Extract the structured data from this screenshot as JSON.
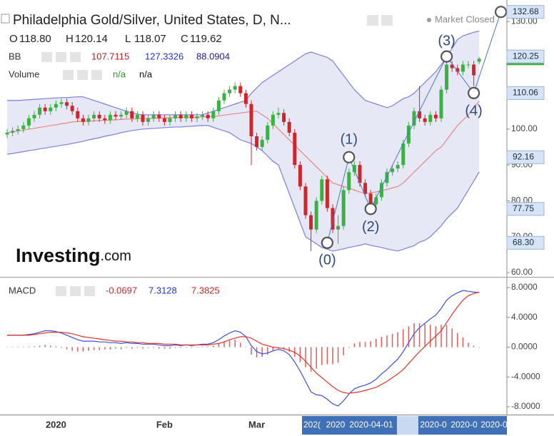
{
  "chart_data": [
    {
      "type": "candlestick",
      "title": "Philadelphia Gold/Silver, United States, D, N...",
      "status": "Market Closed",
      "ohlc_legend": {
        "labels": [
          "O",
          "H",
          "L",
          "C"
        ],
        "values": [
          "118.80",
          "120.14",
          "118.07",
          "119.62"
        ]
      },
      "indicators": [
        {
          "name": "BB",
          "values": [
            "107.7115",
            "127.3326",
            "88.0904"
          ]
        },
        {
          "name": "Volume",
          "values": [
            "n/a",
            "n/a"
          ]
        }
      ],
      "logo": [
        "Investing",
        ".com"
      ],
      "categories": [
        null,
        null,
        null,
        null,
        null,
        null,
        null,
        null,
        null,
        "2020",
        null,
        null,
        null,
        null,
        null,
        null,
        null,
        null,
        null,
        null,
        null,
        null,
        null,
        null,
        null,
        null,
        null,
        null,
        null,
        "Feb",
        null,
        null,
        null,
        null,
        null,
        null,
        null,
        null,
        null,
        null,
        null,
        null,
        null,
        null,
        null,
        null,
        "Mar",
        null,
        null,
        null,
        null,
        null,
        null,
        null,
        null,
        null,
        null,
        null,
        null,
        null,
        null,
        null,
        null,
        null,
        null,
        null,
        null,
        null,
        null,
        null,
        null,
        null,
        null,
        null,
        null,
        null,
        null,
        null,
        null,
        null,
        null,
        null,
        null,
        null,
        null,
        null,
        null,
        null
      ],
      "x_highlight_labels": [
        "202(",
        "2020",
        "2020-04-01",
        "2020-0",
        "2020-0",
        "2020-0"
      ],
      "open": [
        98.5,
        99,
        99.5,
        100,
        101,
        103,
        104,
        106,
        105,
        106,
        107,
        107.5,
        106.5,
        105,
        103,
        102,
        103,
        104,
        103,
        102.5,
        104,
        103.5,
        104,
        105,
        103,
        104,
        102,
        103,
        104,
        103,
        102,
        103,
        104,
        103,
        104,
        103,
        103.5,
        104,
        103,
        105,
        108,
        110,
        111,
        112,
        110,
        107,
        98,
        95,
        97,
        101,
        104,
        104.5,
        102,
        99,
        90,
        84,
        76,
        72,
        80,
        86,
        78,
        72,
        73,
        83,
        88,
        90,
        85,
        82,
        79,
        81,
        85,
        88,
        89,
        90,
        96,
        101,
        105,
        103,
        102,
        104,
        103,
        111,
        118,
        117,
        116,
        118,
        118,
        118.8
      ],
      "high": [
        100,
        100.5,
        101,
        102,
        104,
        105,
        107,
        107,
        107,
        108,
        108.5,
        108.5,
        107.5,
        106,
        104,
        104,
        105,
        105,
        104,
        105,
        105,
        105,
        106,
        106,
        105,
        105,
        104,
        105,
        105,
        104,
        104,
        105,
        105,
        105,
        105,
        104.5,
        105,
        105,
        106,
        109,
        111,
        112,
        113,
        113,
        111,
        108,
        99,
        98,
        102,
        105,
        106,
        105.5,
        103,
        100,
        91,
        85,
        77,
        81,
        87,
        87,
        79,
        76,
        84,
        89,
        91,
        91,
        86,
        83,
        82,
        86,
        89,
        90,
        91,
        97,
        102,
        106,
        112,
        104,
        105,
        105,
        112,
        119,
        119,
        118,
        119,
        119,
        119,
        120.14
      ],
      "low": [
        97.5,
        98,
        98.5,
        99,
        100,
        102,
        103,
        104,
        104,
        105,
        106,
        105.5,
        104,
        102,
        101,
        101,
        102,
        102,
        101.5,
        101.5,
        102.5,
        102.5,
        103,
        102,
        102,
        101,
        101,
        102,
        102,
        101,
        101,
        102,
        102,
        102,
        102,
        102,
        102.5,
        102,
        102,
        104,
        107,
        109,
        110,
        109,
        106,
        90,
        94,
        94,
        96,
        100,
        103,
        101,
        98,
        89,
        83,
        75,
        66,
        71,
        79,
        77,
        71,
        68,
        72,
        82,
        87,
        84,
        81,
        78,
        78,
        80,
        84,
        87,
        88,
        89,
        95,
        100,
        102,
        101,
        101,
        102,
        102,
        110,
        116,
        115,
        115,
        117,
        112,
        118.07
      ],
      "close": [
        99,
        99.5,
        100,
        101,
        103,
        104,
        106,
        105,
        106,
        107,
        107.5,
        106.5,
        105,
        103,
        102,
        103,
        104,
        103,
        102.5,
        104,
        103.5,
        104,
        105,
        103,
        104,
        102,
        103,
        104,
        103,
        102,
        103,
        104,
        103,
        104,
        103,
        103.5,
        104,
        103,
        105,
        108,
        110,
        111,
        112,
        110,
        107,
        98,
        95,
        97,
        101,
        104,
        104.5,
        102,
        99,
        90,
        84,
        76,
        72,
        80,
        86,
        78,
        72,
        73,
        83,
        88,
        90,
        85,
        82,
        79,
        81,
        85,
        88,
        89,
        90,
        96,
        101,
        105,
        103,
        102,
        104,
        103,
        111,
        118,
        117,
        116,
        118,
        118,
        115,
        119.62
      ],
      "up_color": "#3cb043",
      "down_color": "#d0262b",
      "bands": {
        "upper": [
          108,
          108,
          108,
          108.1,
          108.2,
          108.3,
          108.4,
          108.5,
          108.6,
          108.7,
          108.8,
          108.8,
          108.9,
          109,
          109,
          108.5,
          108,
          107.5,
          107,
          106.5,
          106,
          105.5,
          105,
          104.5,
          104.2,
          104,
          104,
          104,
          104,
          104,
          104,
          104,
          104,
          104,
          104,
          104,
          104,
          104.5,
          105,
          105.5,
          106,
          106.5,
          107,
          107.5,
          108,
          110,
          111.5,
          113,
          114,
          115,
          116,
          117,
          118,
          119,
          120,
          121,
          121.5,
          121,
          120.5,
          120,
          119,
          117,
          115,
          113,
          111,
          109.5,
          108,
          107.5,
          107,
          106.5,
          106,
          106.5,
          107.5,
          108.5,
          109,
          110,
          111.5,
          113,
          114.5,
          116,
          118,
          120,
          122.5,
          125,
          126,
          126.5,
          127,
          127.3326
        ],
        "middle": [
          99,
          99.2,
          99.5,
          99.7,
          100,
          100.2,
          100.5,
          100.7,
          101,
          101.2,
          101.5,
          101.7,
          102,
          102.1,
          102.2,
          102.2,
          102.3,
          102.4,
          102.5,
          102.5,
          102.6,
          102.7,
          102.8,
          102.8,
          102.9,
          103,
          103,
          103,
          103.1,
          103.1,
          103.2,
          103.2,
          103.3,
          103.3,
          103.3,
          103.4,
          103.4,
          103.5,
          103.5,
          103.7,
          103.9,
          104.1,
          104.3,
          104.5,
          104.7,
          104.9,
          105,
          104,
          103,
          101.5,
          100,
          98.5,
          97,
          95.5,
          94,
          92.5,
          91,
          89.5,
          88,
          86.5,
          85,
          84.5,
          84,
          83.5,
          83,
          82.5,
          82,
          82.2,
          82.5,
          82.8,
          83.2,
          83.6,
          84,
          85,
          86.5,
          88,
          89.5,
          91,
          92.5,
          94,
          95,
          97,
          99,
          101,
          102.5,
          104,
          106,
          107.7115
        ],
        "lower": [
          93,
          93.2,
          93.5,
          93.7,
          94,
          94.2,
          94.5,
          94.7,
          95,
          95.2,
          95.5,
          95.7,
          96,
          96.3,
          96.6,
          97,
          97.3,
          97.6,
          98,
          98.3,
          98.6,
          99,
          99.3,
          99.6,
          99.8,
          100,
          100.1,
          100.2,
          100.3,
          100.4,
          100.5,
          100.6,
          100.6,
          100.7,
          100.8,
          100.9,
          101,
          101,
          100.5,
          100,
          99.5,
          99,
          98,
          97,
          96.5,
          96,
          95,
          94,
          92.5,
          91,
          90,
          86,
          82,
          78,
          74,
          70,
          69,
          68,
          67,
          66.5,
          66,
          66.3,
          66.6,
          67,
          67.3,
          67.6,
          68,
          67.6,
          67.3,
          67,
          66.6,
          66.3,
          66,
          66.5,
          67,
          67.5,
          68.5,
          69,
          70,
          71.5,
          73,
          75,
          76.5,
          78,
          80.5,
          83,
          85.5,
          88.0904
        ],
        "line_color": "#7b7fe0",
        "middle_color": "#e88585",
        "fill_color": "#e3e4f4"
      },
      "waves": {
        "labels": [
          "(0)",
          "(1)",
          "(2)",
          "(3)",
          "(4)"
        ],
        "x": [
          59,
          63,
          67,
          81,
          86,
          91
        ],
        "values": [
          68.3,
          92.16,
          77.75,
          120.25,
          110.06,
          132.68
        ],
        "value_labels": [
          "68.30",
          "92.16",
          "77.75",
          "120.25",
          "110.06",
          "132.68"
        ],
        "color": "#4a77d0"
      },
      "ylim": [
        58.8,
        136
      ],
      "yticks": [
        {
          "value": 60,
          "label": "60.00"
        },
        {
          "value": 70,
          "label": "70.00"
        },
        {
          "value": 80,
          "label": "80.00"
        },
        {
          "value": 90,
          "label": "90.00"
        },
        {
          "value": 100,
          "label": "100.00"
        },
        {
          "value": 110,
          "label": "110.00"
        },
        {
          "value": 120,
          "label": "120.00"
        },
        {
          "value": 130,
          "label": "130.00"
        }
      ]
    },
    {
      "type": "macd",
      "title": "MACD",
      "legend_values": [
        "-0.0697",
        "7.3128",
        "7.3825"
      ],
      "series": [
        {
          "color": "#3a4fe0",
          "values": [
            1.6,
            1.6,
            1.6,
            1.6,
            1.7,
            1.8,
            2.0,
            2.2,
            2.2,
            2.1,
            1.9,
            1.6,
            1.3,
            1.0,
            0.8,
            0.8,
            0.8,
            0.7,
            0.7,
            0.6,
            0.6,
            0.5,
            0.6,
            0.5,
            0.5,
            0.4,
            0.4,
            0.4,
            0.3,
            0.2,
            0.2,
            0.3,
            0.2,
            0.3,
            0.2,
            0.3,
            0.4,
            0.4,
            0.6,
            1.0,
            1.5,
            1.9,
            2.2,
            2.0,
            1.4,
            0.2,
            -0.6,
            -0.9,
            -0.8,
            -0.5,
            -0.3,
            -0.5,
            -1.0,
            -2.0,
            -3.2,
            -4.6,
            -6.0,
            -6.4,
            -6.5,
            -7.0,
            -7.6,
            -7.9,
            -7.2,
            -6.3,
            -5.6,
            -5.3,
            -5.1,
            -4.8,
            -4.3,
            -3.6,
            -3.0,
            -2.3,
            -1.6,
            -0.6,
            0.6,
            1.8,
            2.6,
            3.2,
            3.8,
            4.3,
            5.2,
            6.3,
            6.9,
            7.3,
            7.6,
            7.5,
            7.4,
            7.3128
          ]
        },
        {
          "color": "#e0352b",
          "values": [
            1.6,
            1.6,
            1.6,
            1.6,
            1.6,
            1.7,
            1.8,
            1.9,
            2.0,
            2.0,
            2.0,
            1.9,
            1.8,
            1.6,
            1.4,
            1.3,
            1.2,
            1.1,
            1.0,
            0.9,
            0.8,
            0.8,
            0.7,
            0.7,
            0.6,
            0.6,
            0.5,
            0.5,
            0.5,
            0.4,
            0.4,
            0.4,
            0.3,
            0.3,
            0.3,
            0.3,
            0.3,
            0.3,
            0.4,
            0.5,
            0.7,
            1.0,
            1.2,
            1.4,
            1.4,
            1.2,
            0.8,
            0.4,
            0.2,
            0.0,
            -0.1,
            -0.2,
            -0.4,
            -0.7,
            -1.2,
            -1.9,
            -2.7,
            -3.5,
            -4.1,
            -4.7,
            -5.3,
            -5.8,
            -6.1,
            -6.2,
            -6.1,
            -6.0,
            -5.8,
            -5.6,
            -5.4,
            -5.0,
            -4.6,
            -4.1,
            -3.6,
            -3.0,
            -2.2,
            -1.4,
            -0.6,
            0.1,
            0.8,
            1.5,
            2.2,
            3.3,
            4.4,
            5.4,
            6.3,
            6.9,
            7.2,
            7.3825
          ]
        }
      ],
      "histogram": {
        "color": "#e85a5a",
        "values": [
          0,
          0,
          0,
          0,
          0.1,
          0.1,
          0.2,
          0.3,
          0.2,
          0.1,
          -0.1,
          -0.3,
          -0.5,
          -0.6,
          -0.6,
          -0.5,
          -0.4,
          -0.4,
          -0.3,
          -0.3,
          -0.2,
          -0.3,
          -0.1,
          -0.2,
          -0.1,
          -0.2,
          -0.1,
          -0.1,
          -0.2,
          -0.2,
          -0.2,
          -0.1,
          -0.1,
          0,
          -0.1,
          0,
          0.1,
          0.1,
          0.2,
          0.5,
          0.8,
          0.9,
          1.0,
          0.6,
          0,
          -1.0,
          -1.4,
          -1.3,
          -1.0,
          -0.5,
          -0.2,
          -0.3,
          -0.6,
          -1.3,
          -2.0,
          -2.7,
          -3.3,
          -2.9,
          -2.4,
          -2.3,
          -2.3,
          -2.1,
          -1.1,
          -0.1,
          0.5,
          0.7,
          0.7,
          0.8,
          1.1,
          1.4,
          1.6,
          1.8,
          2.0,
          2.4,
          2.8,
          3.2,
          3.2,
          3.1,
          3.0,
          2.8,
          3.0,
          3.0,
          2.5,
          1.9,
          1.3,
          0.6,
          0.2,
          -0.0697
        ]
      },
      "ylim": [
        -8.96,
        9.05
      ],
      "yticks": [
        {
          "value": 8,
          "label": "8.0000"
        },
        {
          "value": 4,
          "label": "4.0000"
        },
        {
          "value": 0,
          "label": "0.0000"
        },
        {
          "value": -4,
          "label": "-4.0000"
        },
        {
          "value": -8,
          "label": "-8.0000"
        }
      ]
    }
  ]
}
